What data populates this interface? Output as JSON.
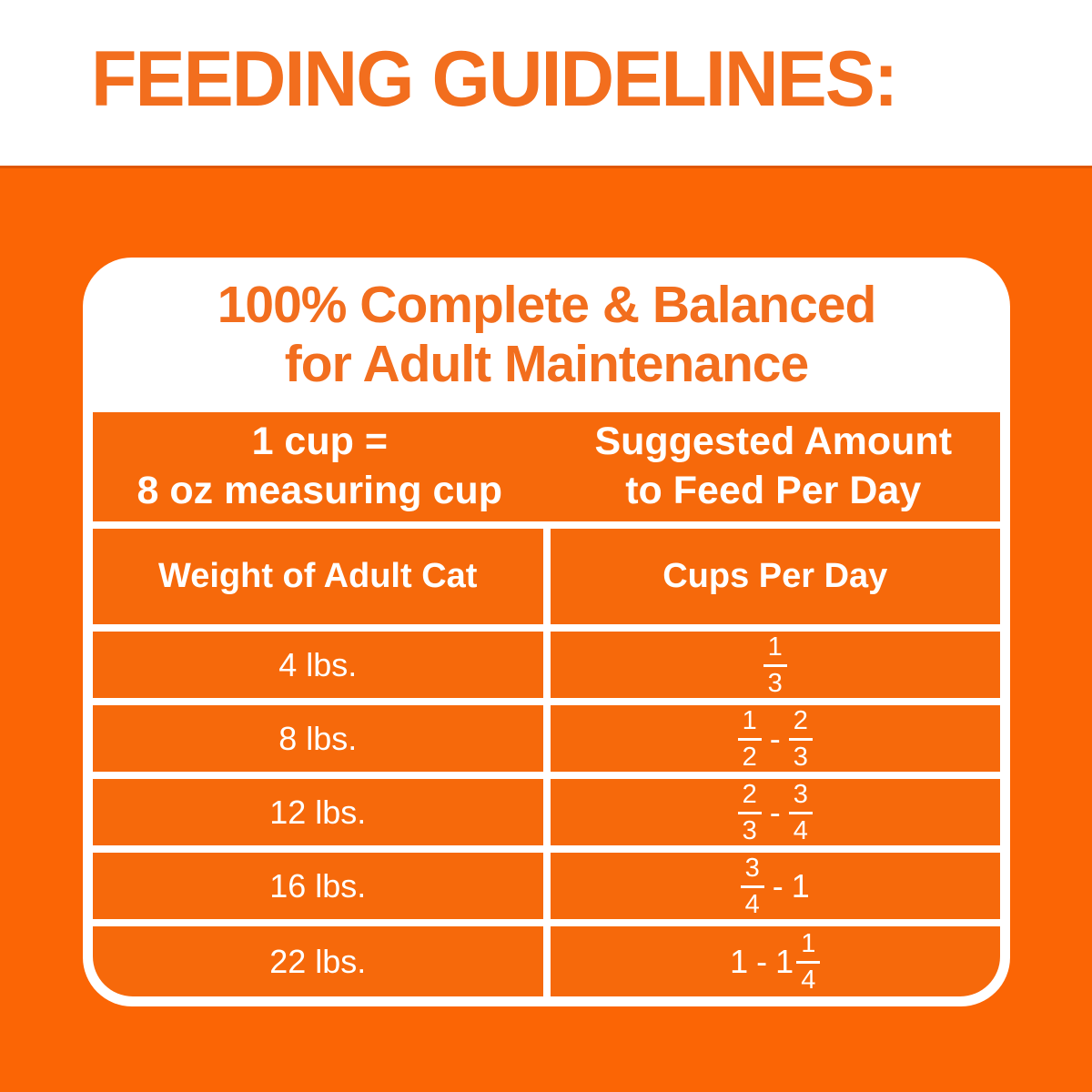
{
  "colors": {
    "background_orange": "#FB6505",
    "cell_orange": "#F6690B",
    "text_orange": "#F26E1E",
    "table_text_white": "#FFFFFF"
  },
  "title": "FEEDING GUIDELINES:",
  "card": {
    "heading": {
      "line1": "100% Complete & Balanced",
      "line2": "for Adult Maintenance"
    },
    "cup_note": {
      "line1": "1 cup =",
      "line2": "8 oz measuring cup"
    },
    "suggested": {
      "line1": "Suggested Amount",
      "line2": "to Feed Per Day"
    },
    "columns": {
      "weight": "Weight of Adult Cat",
      "cups": "Cups Per Day"
    },
    "rows": [
      {
        "weight": "4 lbs.",
        "cups_display": "1/3",
        "cups": [
          {
            "t": "frac",
            "n": "1",
            "d": "3"
          }
        ]
      },
      {
        "weight": "8 lbs.",
        "cups_display": "1/2 - 2/3",
        "cups": [
          {
            "t": "frac",
            "n": "1",
            "d": "2"
          },
          {
            "t": "dash"
          },
          {
            "t": "frac",
            "n": "2",
            "d": "3"
          }
        ]
      },
      {
        "weight": "12 lbs.",
        "cups_display": "2/3 - 3/4",
        "cups": [
          {
            "t": "frac",
            "n": "2",
            "d": "3"
          },
          {
            "t": "dash"
          },
          {
            "t": "frac",
            "n": "3",
            "d": "4"
          }
        ]
      },
      {
        "weight": "16 lbs.",
        "cups_display": "3/4 - 1",
        "cups": [
          {
            "t": "frac",
            "n": "3",
            "d": "4"
          },
          {
            "t": "dash"
          },
          {
            "t": "text",
            "v": "1"
          }
        ]
      },
      {
        "weight": "22 lbs.",
        "cups_display": "1 - 1 1/4",
        "cups": [
          {
            "t": "text",
            "v": "1"
          },
          {
            "t": "dash"
          },
          {
            "t": "text",
            "v": "1"
          },
          {
            "t": "frac",
            "n": "1",
            "d": "4"
          }
        ]
      }
    ]
  },
  "chart_data": {
    "type": "table",
    "title": "FEEDING GUIDELINES: 100% Complete & Balanced for Adult Maintenance",
    "note": "1 cup = 8 oz measuring cup",
    "columns": [
      "Weight of Adult Cat",
      "Cups Per Day (Suggested Amount to Feed Per Day)"
    ],
    "rows": [
      [
        "4 lbs.",
        "1/3"
      ],
      [
        "8 lbs.",
        "1/2 - 2/3"
      ],
      [
        "12 lbs.",
        "2/3 - 3/4"
      ],
      [
        "16 lbs.",
        "3/4 - 1"
      ],
      [
        "22 lbs.",
        "1 - 1 1/4"
      ]
    ]
  }
}
